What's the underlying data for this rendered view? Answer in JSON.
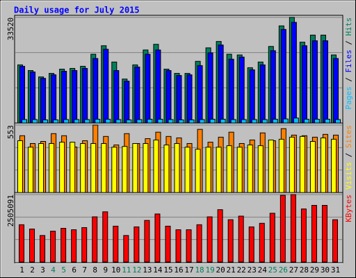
{
  "chart_data": [
    {
      "type": "bar",
      "title": "Daily usage for July 2015",
      "ylim": [
        0,
        33520
      ],
      "yticks": [
        33520
      ],
      "legend_separator": " / ",
      "series": [
        {
          "name": "Hits",
          "color": "#00805c",
          "values": [
            18450,
            16650,
            14625,
            15750,
            17100,
            17325,
            18000,
            21825,
            24525,
            19350,
            13950,
            18450,
            23175,
            24975,
            17100,
            15750,
            15750,
            19575,
            23850,
            25875,
            21825,
            21600,
            17550,
            19350,
            24300,
            30825,
            33520,
            25650,
            27900,
            27900,
            21600
          ]
        },
        {
          "name": "Files",
          "color": "#0000ff",
          "values": [
            18000,
            16200,
            14175,
            15300,
            16425,
            16650,
            17325,
            20475,
            23400,
            16650,
            13275,
            17775,
            21825,
            23175,
            16650,
            15075,
            15300,
            18225,
            22275,
            24750,
            20250,
            20925,
            16875,
            18450,
            22950,
            29700,
            31950,
            24525,
            26100,
            26100,
            20475
          ]
        },
        {
          "name": "Pages",
          "color": "#00c0ff",
          "values": [
            1100,
            1100,
            1000,
            1000,
            1100,
            1100,
            1100,
            1200,
            1200,
            1100,
            1000,
            1100,
            1200,
            1200,
            1100,
            1000,
            1000,
            1100,
            1200,
            1200,
            1100,
            1100,
            1100,
            1100,
            1200,
            1300,
            1575,
            1200,
            1200,
            1200,
            1100
          ]
        }
      ]
    },
    {
      "type": "bar",
      "ylim": [
        0,
        553
      ],
      "yticks": [
        553
      ],
      "legend_separator": " / ",
      "series": [
        {
          "name": "Sites",
          "color": "#ff8000",
          "values": [
            466,
            402,
            419,
            483,
            466,
            373,
            425,
            553,
            460,
            390,
            483,
            402,
            442,
            495,
            460,
            448,
            402,
            518,
            413,
            454,
            495,
            402,
            431,
            489,
            425,
            524,
            471,
            466,
            454,
            477,
            471
          ]
        },
        {
          "name": "Visits",
          "color": "#ffff00",
          "values": [
            425,
            372,
            402,
            402,
            413,
            413,
            402,
            402,
            402,
            372,
            378,
            402,
            402,
            431,
            390,
            402,
            372,
            355,
            372,
            372,
            384,
            372,
            390,
            384,
            431,
            437,
            454,
            460,
            419,
            448,
            437
          ]
        }
      ]
    },
    {
      "type": "bar",
      "ylim": [
        0,
        2505091
      ],
      "yticks": [
        2505091
      ],
      "categories": [
        "1",
        "2",
        "3",
        "4",
        "5",
        "6",
        "7",
        "8",
        "9",
        "10",
        "11",
        "12",
        "13",
        "14",
        "15",
        "16",
        "17",
        "18",
        "19",
        "20",
        "21",
        "22",
        "23",
        "24",
        "25",
        "26",
        "27",
        "28",
        "29",
        "30",
        "31"
      ],
      "category_colors": [
        "#000000",
        "#000000",
        "#000000",
        "#00805c",
        "#00805c",
        "#000000",
        "#000000",
        "#000000",
        "#000000",
        "#000000",
        "#00805c",
        "#00805c",
        "#000000",
        "#000000",
        "#000000",
        "#000000",
        "#000000",
        "#00805c",
        "#00805c",
        "#000000",
        "#000000",
        "#000000",
        "#000000",
        "#000000",
        "#00805c",
        "#00805c",
        "#000000",
        "#000000",
        "#000000",
        "#000000",
        "#000000"
      ],
      "series": [
        {
          "name": "KBytes",
          "color": "#ff0000",
          "values": [
            1385800,
            1225900,
            986050,
            1145950,
            1252550,
            1199250,
            1279200,
            1678950,
            1865500,
            1332500,
            986050,
            1305850,
            1545700,
            1785550,
            1332500,
            1199250,
            1199250,
            1385800,
            1678950,
            1945450,
            1572350,
            1705600,
            1305850,
            1439100,
            1812200,
            2478450,
            2505091,
            1972100,
            2105350,
            2105350,
            1572350
          ]
        }
      ]
    }
  ]
}
